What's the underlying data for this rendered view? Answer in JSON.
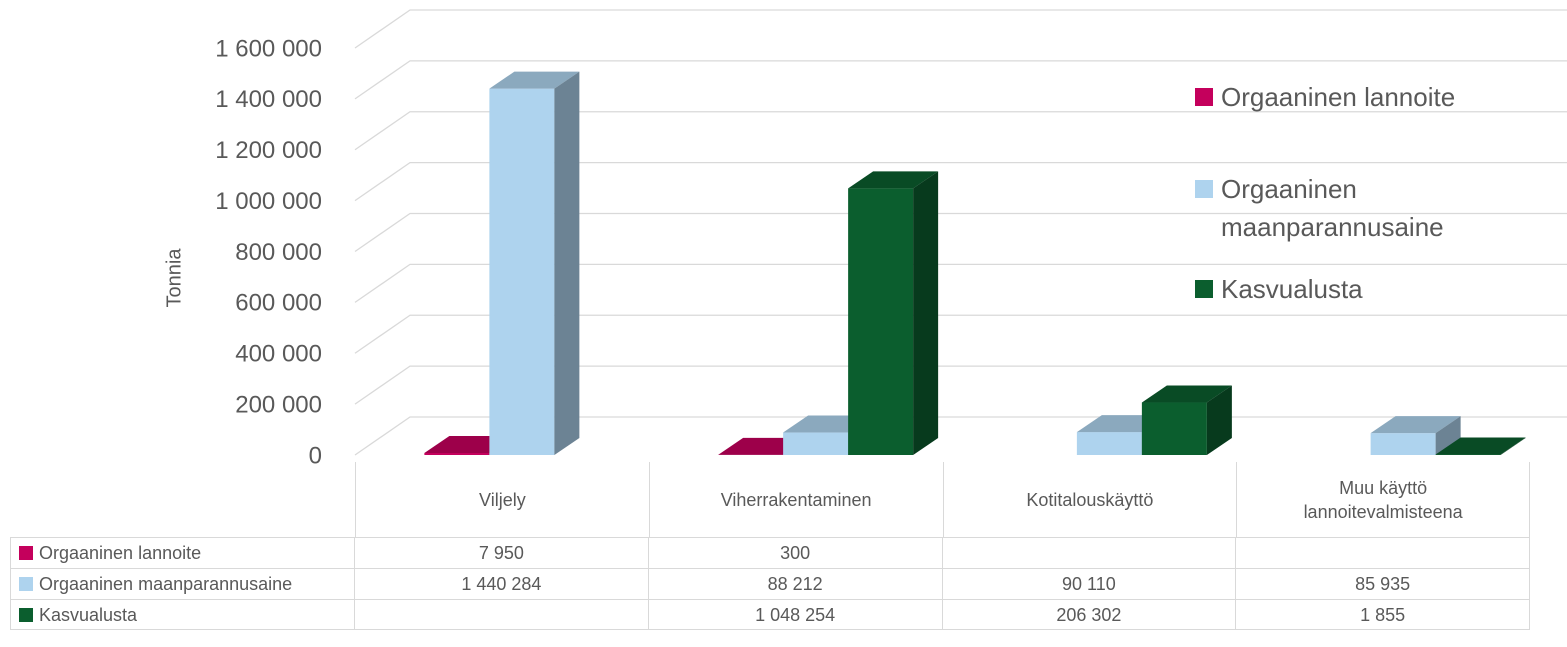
{
  "chart_data": {
    "type": "bar3d",
    "y_label": "Tonnia",
    "categories": [
      "Viljely",
      "Viherrakentaminen",
      "Kotitalouskäyttö",
      "Muu käyttö lannoitevalmisteena"
    ],
    "series": [
      {
        "name": "Orgaaninen lannoite",
        "color": "#c4005c",
        "values": [
          7950,
          300,
          null,
          null
        ],
        "value_labels": [
          "7 950",
          "300",
          null,
          null
        ]
      },
      {
        "name": "Orgaaninen maanparannusaine",
        "color": "#aed3ee",
        "values": [
          1440284,
          88212,
          90110,
          85935
        ],
        "value_labels": [
          "1 440 284",
          "88 212",
          "90 110",
          "85 935"
        ]
      },
      {
        "name": "Kasvualusta",
        "color": "#0b5e2e",
        "values": [
          null,
          1048254,
          206302,
          1855
        ],
        "value_labels": [
          null,
          "1 048 254",
          "206 302",
          "1 855"
        ]
      }
    ],
    "ylim": [
      0,
      1600000
    ],
    "yticks": [
      0,
      {
        "value": 200000,
        "label": "200 000"
      },
      {
        "value": 400000,
        "label": "400 000"
      },
      {
        "value": 600000,
        "label": "600 000"
      },
      {
        "value": 800000,
        "label": "800 000"
      },
      {
        "value": 1000000,
        "label": "1 000 000"
      },
      {
        "value": 1200000,
        "label": "1 200 000"
      },
      {
        "value": 1400000,
        "label": "1 400 000"
      },
      {
        "value": 1600000,
        "label": "1 600 000"
      }
    ],
    "grid": true
  }
}
